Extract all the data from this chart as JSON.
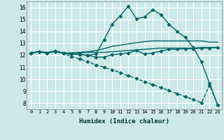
{
  "xlabel": "Humidex (Indice chaleur)",
  "bg_color": "#cce8e8",
  "grid_color": "#ffffff",
  "line_color": "#006666",
  "xlim": [
    -0.5,
    23.5
  ],
  "ylim": [
    7.5,
    16.5
  ],
  "xticks": [
    0,
    1,
    2,
    3,
    4,
    5,
    6,
    7,
    8,
    9,
    10,
    11,
    12,
    13,
    14,
    15,
    16,
    17,
    18,
    19,
    20,
    21,
    22,
    23
  ],
  "yticks": [
    8,
    9,
    10,
    11,
    12,
    13,
    14,
    15,
    16
  ],
  "lines": [
    {
      "x": [
        0,
        1,
        2,
        3,
        4,
        5,
        6,
        7,
        8,
        9,
        10,
        11,
        12,
        13,
        14,
        15,
        16,
        17,
        18,
        19,
        20,
        21,
        22,
        23
      ],
      "y": [
        12.2,
        12.3,
        12.2,
        12.3,
        12.15,
        11.9,
        11.7,
        11.45,
        11.2,
        11.0,
        10.8,
        10.55,
        10.3,
        10.05,
        9.8,
        9.55,
        9.3,
        9.05,
        8.8,
        8.55,
        8.3,
        8.05,
        9.5,
        7.85
      ],
      "marker": "D",
      "markersize": 2.5,
      "linewidth": 1.0,
      "linestyle": "--"
    },
    {
      "x": [
        0,
        1,
        2,
        3,
        4,
        5,
        6,
        7,
        8,
        9,
        10,
        11,
        12,
        13,
        14,
        15,
        16,
        17,
        18,
        19,
        20,
        21,
        22,
        23
      ],
      "y": [
        12.2,
        12.3,
        12.2,
        12.3,
        12.2,
        12.2,
        12.2,
        12.25,
        12.25,
        12.25,
        12.3,
        12.35,
        12.4,
        12.45,
        12.5,
        12.55,
        12.6,
        12.6,
        12.6,
        12.6,
        12.6,
        12.65,
        12.65,
        12.65
      ],
      "marker": null,
      "markersize": 0,
      "linewidth": 1.0,
      "linestyle": "-"
    },
    {
      "x": [
        0,
        1,
        2,
        3,
        4,
        5,
        6,
        7,
        8,
        9,
        10,
        11,
        12,
        13,
        14,
        15,
        16,
        17,
        18,
        19,
        20,
        21,
        22,
        23
      ],
      "y": [
        12.2,
        12.3,
        12.25,
        12.35,
        12.2,
        12.2,
        12.25,
        12.3,
        12.4,
        12.55,
        12.75,
        12.85,
        12.95,
        13.05,
        13.15,
        13.2,
        13.2,
        13.2,
        13.2,
        13.2,
        13.2,
        13.2,
        13.1,
        13.1
      ],
      "marker": null,
      "markersize": 0,
      "linewidth": 1.0,
      "linestyle": "-"
    },
    {
      "x": [
        0,
        1,
        2,
        3,
        4,
        5,
        6,
        7,
        8,
        9,
        10,
        11,
        12,
        13,
        14,
        15,
        16,
        17,
        18,
        19,
        20,
        21,
        22,
        23
      ],
      "y": [
        12.2,
        12.3,
        12.2,
        12.35,
        12.2,
        12.1,
        12.05,
        12.0,
        11.85,
        11.85,
        12.05,
        12.1,
        12.2,
        12.4,
        12.1,
        12.2,
        12.35,
        12.5,
        12.5,
        12.55,
        12.55,
        12.6,
        12.6,
        12.65
      ],
      "marker": "D",
      "markersize": 2.5,
      "linewidth": 1.0,
      "linestyle": "-"
    },
    {
      "x": [
        0,
        1,
        2,
        3,
        4,
        5,
        6,
        7,
        8,
        9,
        10,
        11,
        12,
        13,
        14,
        15,
        16,
        17,
        18,
        19,
        20,
        21,
        22,
        23
      ],
      "y": [
        12.2,
        12.3,
        12.2,
        12.35,
        12.2,
        12.1,
        12.1,
        12.0,
        12.1,
        13.3,
        14.6,
        15.3,
        16.1,
        15.05,
        15.2,
        15.8,
        15.4,
        14.6,
        14.0,
        13.5,
        12.65,
        11.45,
        9.65,
        7.85
      ],
      "marker": "D",
      "markersize": 2.5,
      "linewidth": 1.0,
      "linestyle": "-"
    }
  ]
}
